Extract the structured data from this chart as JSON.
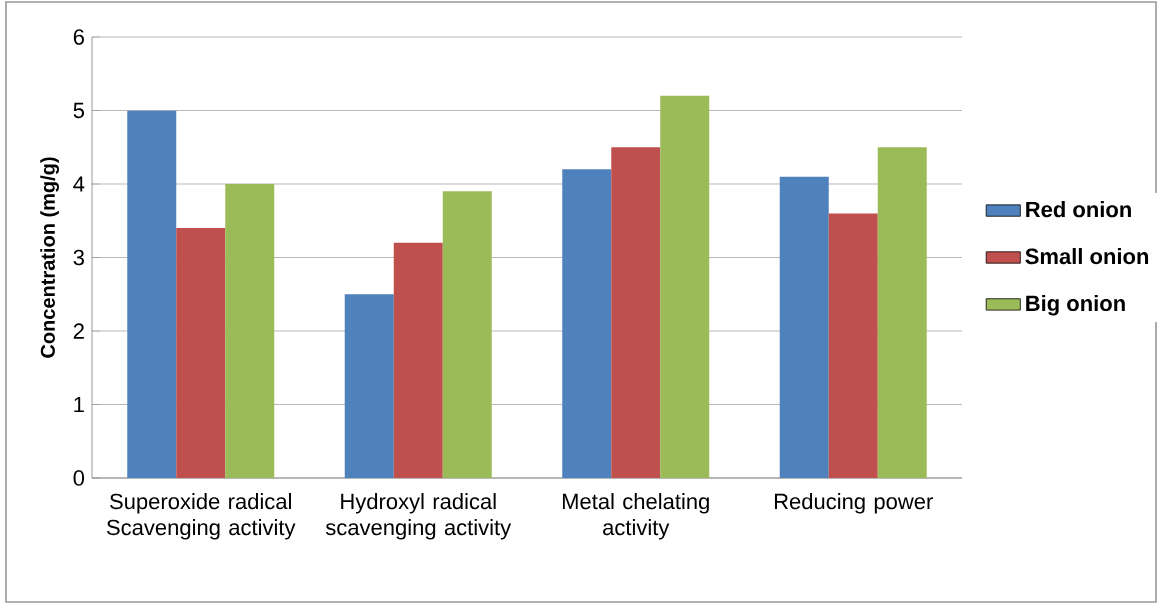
{
  "chart_data": {
    "type": "bar",
    "ylabel": "Concentration (mg/g)",
    "categories": [
      "Superoxide radical Scavenging activity",
      "Hydroxyl radical scavenging activity",
      "Metal chelating activity",
      "Reducing power"
    ],
    "series": [
      {
        "name": "Red onion",
        "color": "#4f81bd",
        "values": [
          5.0,
          2.5,
          4.2,
          4.1
        ]
      },
      {
        "name": "Small onion",
        "color": "#c0504d",
        "values": [
          3.4,
          3.2,
          4.5,
          3.6
        ]
      },
      {
        "name": "Big onion",
        "color": "#9bbb59",
        "values": [
          4.0,
          3.9,
          5.2,
          4.5
        ]
      }
    ],
    "ylim": [
      0,
      6
    ],
    "yticks": [
      0,
      1,
      2,
      3,
      4,
      5,
      6
    ],
    "grid": "y",
    "legend": "right"
  }
}
